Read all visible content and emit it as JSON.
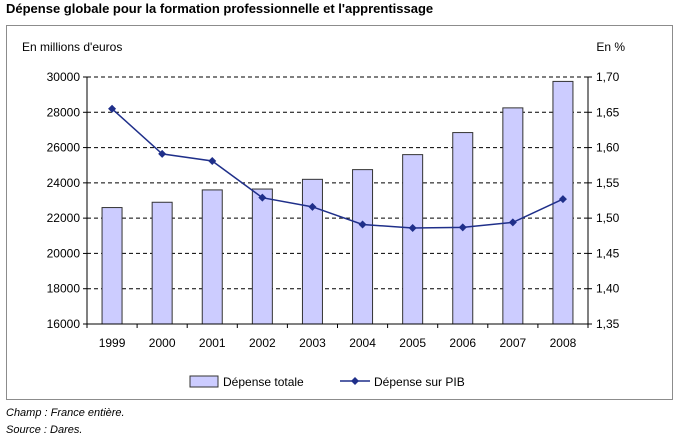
{
  "title": "Dépense globale pour la formation professionnelle et l'apprentissage",
  "notes": {
    "champ": "Champ : France entière.",
    "source": "Source : Dares."
  },
  "colors": {
    "bar_fill": "#ccccff",
    "bar_stroke": "#333333",
    "line": "#1f2f8a",
    "grid": "#000000"
  },
  "chart_data": {
    "type": "bar",
    "categories": [
      "1999",
      "2000",
      "2001",
      "2002",
      "2003",
      "2004",
      "2005",
      "2006",
      "2007",
      "2008"
    ],
    "series": [
      {
        "name": "Dépense totale",
        "type": "bar",
        "axis": "left",
        "values": [
          22600,
          22900,
          23600,
          23650,
          24200,
          24750,
          25600,
          26850,
          28250,
          29750
        ]
      },
      {
        "name": "Dépense sur PIB",
        "type": "line",
        "axis": "right",
        "marker": "diamond",
        "values": [
          1.655,
          1.591,
          1.581,
          1.529,
          1.516,
          1.491,
          1.486,
          1.487,
          1.494,
          1.527
        ]
      }
    ],
    "left_axis": {
      "label": "En millions d'euros",
      "min": 16000,
      "max": 30000,
      "ticks": [
        "16000",
        "18000",
        "20000",
        "22000",
        "24000",
        "26000",
        "28000",
        "30000"
      ]
    },
    "right_axis": {
      "label": "En %",
      "min": 1.35,
      "max": 1.7,
      "ticks": [
        "1,35",
        "1,40",
        "1,45",
        "1,50",
        "1,55",
        "1,60",
        "1,65",
        "1,70"
      ]
    },
    "grid": "horizontal dashed",
    "legend_position": "bottom"
  }
}
